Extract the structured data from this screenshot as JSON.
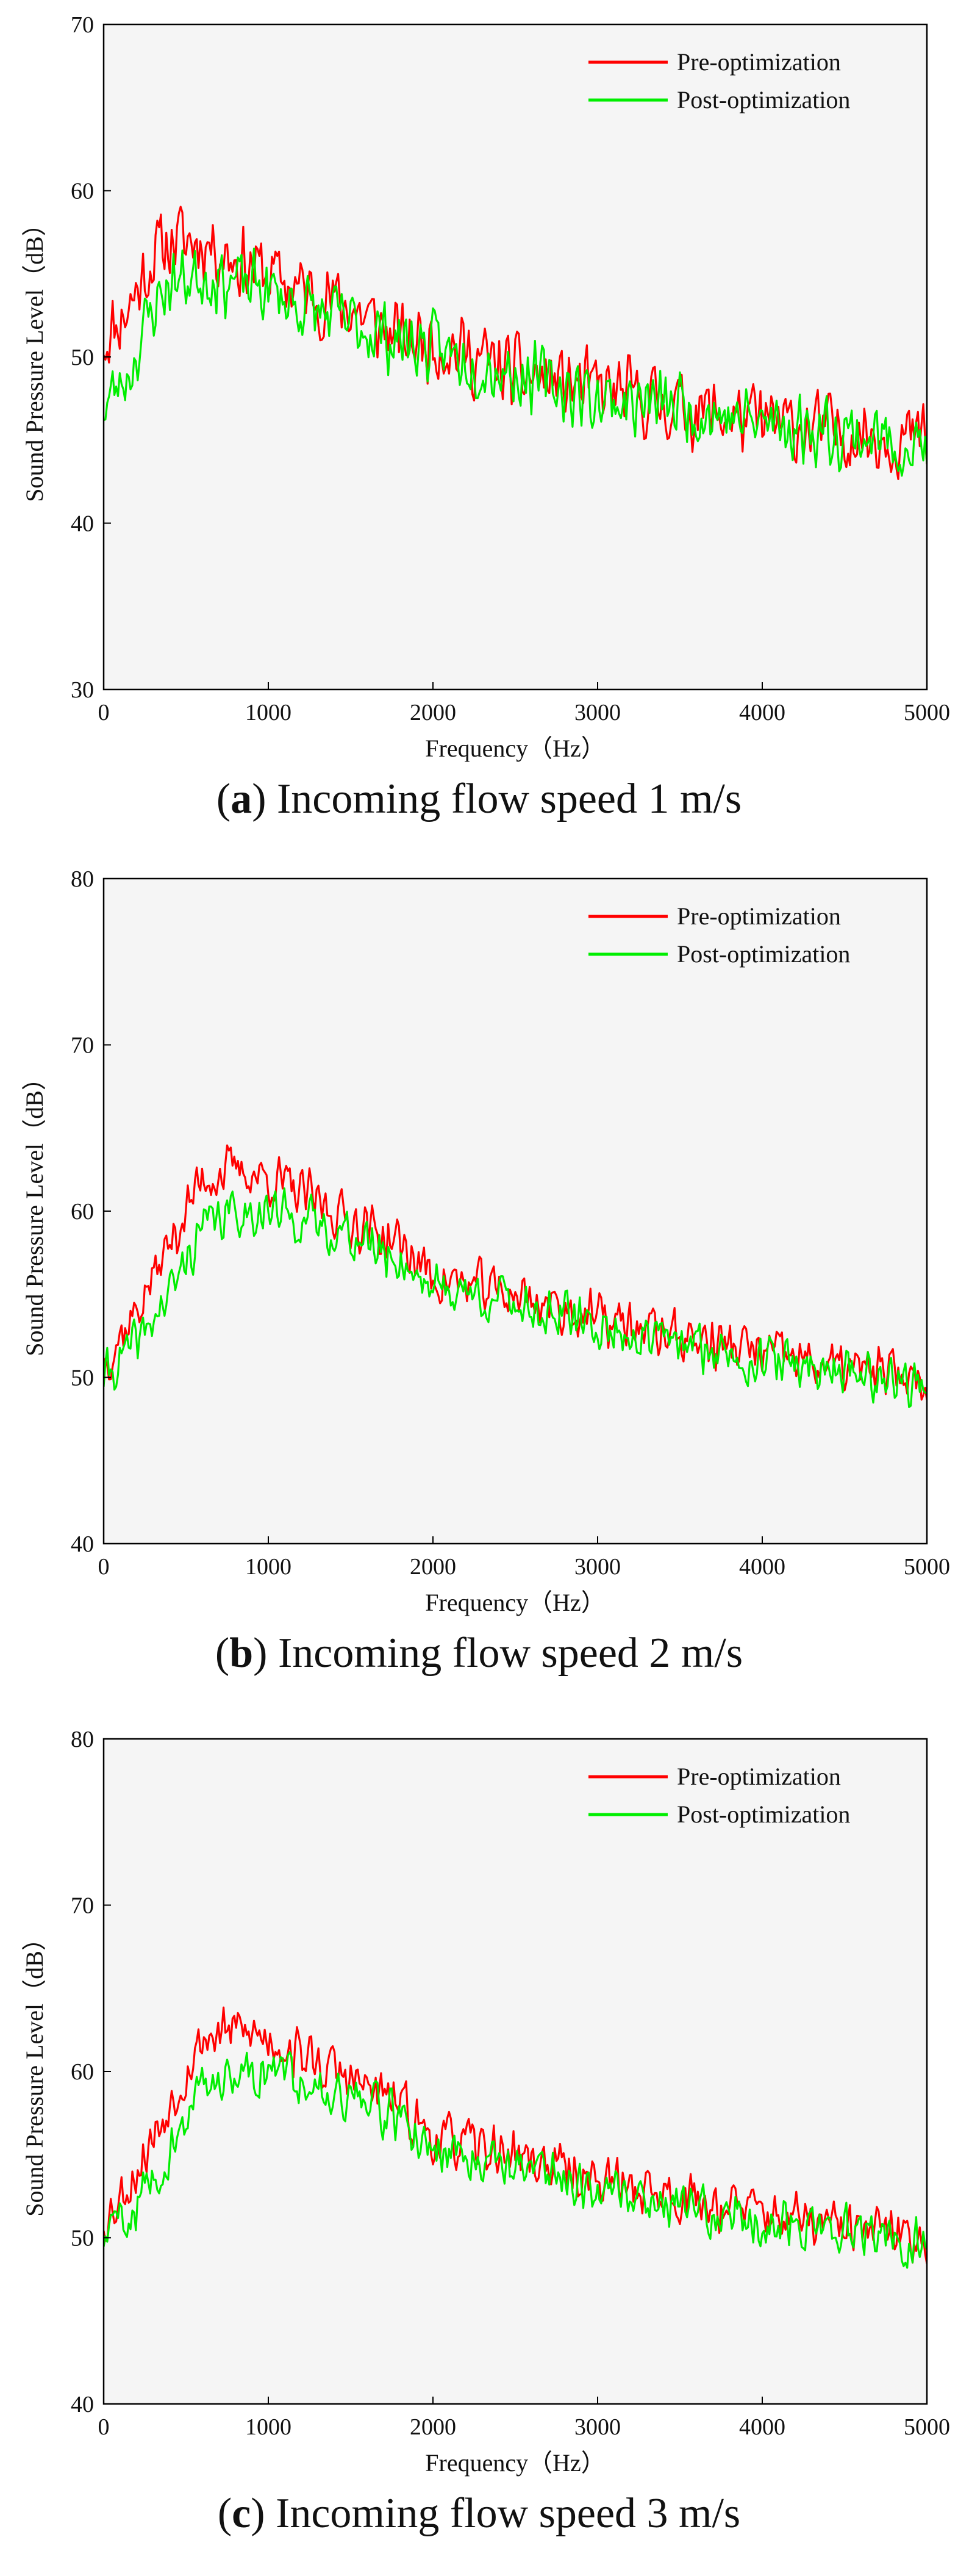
{
  "chart_data": [
    {
      "type": "line",
      "panel_letter": "a",
      "caption": "Incoming flow speed 1 m/s",
      "xlabel": "Frequency（Hz）",
      "ylabel": "Sound Pressure Level（dB）",
      "xlim": [
        0,
        5000
      ],
      "ylim": [
        30,
        70
      ],
      "xticks": [
        0,
        1000,
        2000,
        3000,
        4000,
        5000
      ],
      "yticks": [
        30,
        40,
        50,
        60,
        70
      ],
      "legend_position": "top-right",
      "series": [
        {
          "name": "Pre-optimization",
          "color": "#ff0000",
          "anchors": [
            [
              0,
              51
            ],
            [
              150,
              53
            ],
            [
              300,
              56
            ],
            [
              400,
              57
            ],
            [
              600,
              57
            ],
            [
              800,
              56
            ],
            [
              1000,
              55
            ],
            [
              1200,
              54
            ],
            [
              1500,
              53
            ],
            [
              1800,
              51
            ],
            [
              2000,
              51
            ],
            [
              2500,
              49
            ],
            [
              3000,
              48
            ],
            [
              3500,
              47
            ],
            [
              4000,
              46
            ],
            [
              4500,
              45.5
            ],
            [
              5000,
              45
            ]
          ],
          "noise": 2.3,
          "seed": 11
        },
        {
          "name": "Post-optimization",
          "color": "#00ee00",
          "anchors": [
            [
              0,
              47
            ],
            [
              150,
              49
            ],
            [
              300,
              53
            ],
            [
              400,
              54.5
            ],
            [
              600,
              55
            ],
            [
              800,
              54.5
            ],
            [
              1000,
              54
            ],
            [
              1200,
              53
            ],
            [
              1500,
              52
            ],
            [
              1800,
              51
            ],
            [
              2000,
              50.5
            ],
            [
              2500,
              49
            ],
            [
              3000,
              47.5
            ],
            [
              3500,
              47
            ],
            [
              4000,
              46
            ],
            [
              4500,
              45.5
            ],
            [
              5000,
              44.5
            ]
          ],
          "noise": 2.1,
          "seed": 23
        }
      ]
    },
    {
      "type": "line",
      "panel_letter": "b",
      "caption": "Incoming flow speed 2 m/s",
      "xlabel": "Frequency（Hz）",
      "ylabel": "Sound Pressure Level（dB）",
      "xlim": [
        0,
        5000
      ],
      "ylim": [
        40,
        80
      ],
      "xticks": [
        0,
        1000,
        2000,
        3000,
        4000,
        5000
      ],
      "yticks": [
        40,
        50,
        60,
        70,
        80
      ],
      "legend_position": "top-right",
      "series": [
        {
          "name": "Pre-optimization",
          "color": "#ff0000",
          "anchors": [
            [
              0,
              51
            ],
            [
              200,
              54
            ],
            [
              400,
              58
            ],
            [
              600,
              62
            ],
            [
              800,
              62.5
            ],
            [
              1000,
              62
            ],
            [
              1200,
              61
            ],
            [
              1500,
              59.5
            ],
            [
              1800,
              58
            ],
            [
              2000,
              56
            ],
            [
              2500,
              55
            ],
            [
              3000,
              53.5
            ],
            [
              3500,
              52.5
            ],
            [
              4000,
              51.5
            ],
            [
              4500,
              50.5
            ],
            [
              5000,
              50
            ]
          ],
          "noise": 1.6,
          "seed": 37
        },
        {
          "name": "Post-optimization",
          "color": "#00ee00",
          "anchors": [
            [
              0,
              50
            ],
            [
              200,
              52
            ],
            [
              400,
              55
            ],
            [
              600,
              59
            ],
            [
              800,
              60
            ],
            [
              1000,
              60
            ],
            [
              1200,
              59.5
            ],
            [
              1500,
              58.5
            ],
            [
              1800,
              57
            ],
            [
              2000,
              55.5
            ],
            [
              2500,
              54.5
            ],
            [
              3000,
              53
            ],
            [
              3500,
              52
            ],
            [
              4000,
              51
            ],
            [
              4500,
              50.5
            ],
            [
              5000,
              49.5
            ]
          ],
          "noise": 1.5,
          "seed": 41
        }
      ]
    },
    {
      "type": "line",
      "panel_letter": "c",
      "caption": "Incoming flow speed 3 m/s",
      "xlabel": "Frequency（Hz）",
      "ylabel": "Sound Pressure Level（dB）",
      "xlim": [
        0,
        5000
      ],
      "ylim": [
        40,
        80
      ],
      "xticks": [
        0,
        1000,
        2000,
        3000,
        4000,
        5000
      ],
      "yticks": [
        40,
        50,
        60,
        70,
        80
      ],
      "legend_position": "top-right",
      "series": [
        {
          "name": "Pre-optimization",
          "color": "#ff0000",
          "anchors": [
            [
              0,
              51
            ],
            [
              200,
              54
            ],
            [
              400,
              58
            ],
            [
              600,
              62
            ],
            [
              800,
              62.5
            ],
            [
              1000,
              62
            ],
            [
              1200,
              61
            ],
            [
              1500,
              59.5
            ],
            [
              1800,
              58
            ],
            [
              2000,
              56
            ],
            [
              2500,
              55
            ],
            [
              3000,
              53.5
            ],
            [
              3500,
              52.5
            ],
            [
              4000,
              51.5
            ],
            [
              4500,
              50.5
            ],
            [
              5000,
              50
            ]
          ],
          "noise": 1.6,
          "seed": 53
        },
        {
          "name": "Post-optimization",
          "color": "#00ee00",
          "anchors": [
            [
              0,
              50
            ],
            [
              200,
              52
            ],
            [
              400,
              55
            ],
            [
              600,
              59
            ],
            [
              800,
              60
            ],
            [
              1000,
              60
            ],
            [
              1200,
              59.5
            ],
            [
              1500,
              58.5
            ],
            [
              1800,
              57
            ],
            [
              2000,
              55.5
            ],
            [
              2500,
              54.5
            ],
            [
              3000,
              53
            ],
            [
              3500,
              52
            ],
            [
              4000,
              51
            ],
            [
              4500,
              50.5
            ],
            [
              5000,
              49.5
            ]
          ],
          "noise": 1.5,
          "seed": 59
        }
      ]
    }
  ]
}
